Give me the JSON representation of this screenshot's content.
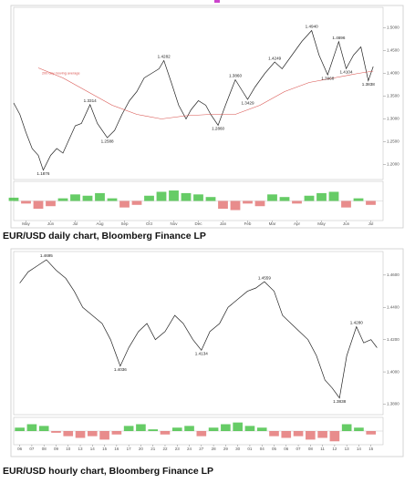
{
  "chart_data": [
    {
      "type": "line",
      "title": "EUR/USD daily chart, Bloomberg Finance LP",
      "xlim": [
        0,
        15
      ],
      "xticks": [
        {
          "value": 0.5,
          "label": "May"
        },
        {
          "value": 1.5,
          "label": "Jun"
        },
        {
          "value": 2.5,
          "label": "Jul"
        },
        {
          "value": 3.5,
          "label": "Aug"
        },
        {
          "value": 4.5,
          "label": "Sep"
        },
        {
          "value": 5.5,
          "label": "Oct"
        },
        {
          "value": 6.5,
          "label": "Nov"
        },
        {
          "value": 7.5,
          "label": "Dec"
        },
        {
          "value": 8.5,
          "label": "Jan"
        },
        {
          "value": 9.5,
          "label": "Feb"
        },
        {
          "value": 10.5,
          "label": "Mar"
        },
        {
          "value": 11.5,
          "label": "Apr"
        },
        {
          "value": 12.5,
          "label": "May"
        },
        {
          "value": 13.5,
          "label": "Jun"
        },
        {
          "value": 14.5,
          "label": "Jul"
        }
      ],
      "ylim": [
        1.167,
        1.545
      ],
      "yticks": [
        {
          "value": 1.2,
          "label": "1.2000"
        },
        {
          "value": 1.25,
          "label": "1.2500"
        },
        {
          "value": 1.3,
          "label": "1.3000"
        },
        {
          "value": 1.35,
          "label": "1.3500"
        },
        {
          "value": 1.4,
          "label": "1.4000"
        },
        {
          "value": 1.45,
          "label": "1.4500"
        },
        {
          "value": 1.5,
          "label": "1.5000"
        }
      ],
      "series": [
        {
          "color": "#222222",
          "x": [
            0,
            0.25,
            0.5,
            0.75,
            1.0,
            1.2,
            1.5,
            1.75,
            2.0,
            2.25,
            2.5,
            2.75,
            3.1,
            3.4,
            3.8,
            4.1,
            4.4,
            4.7,
            5.0,
            5.3,
            5.6,
            5.9,
            6.1,
            6.4,
            6.7,
            7.0,
            7.2,
            7.5,
            7.8,
            8.0,
            8.3,
            8.6,
            9.0,
            9.3,
            9.5,
            9.8,
            10.2,
            10.6,
            10.9,
            11.3,
            11.7,
            12.1,
            12.4,
            12.75,
            13.2,
            13.5,
            13.8,
            14.1,
            14.4,
            14.6
          ],
          "values": [
            1.335,
            1.31,
            1.27,
            1.235,
            1.22,
            1.1876,
            1.22,
            1.235,
            1.225,
            1.255,
            1.285,
            1.29,
            1.3314,
            1.29,
            1.2588,
            1.275,
            1.31,
            1.34,
            1.36,
            1.39,
            1.4,
            1.41,
            1.4282,
            1.38,
            1.33,
            1.3,
            1.32,
            1.34,
            1.33,
            1.31,
            1.286,
            1.33,
            1.386,
            1.36,
            1.3429,
            1.37,
            1.4,
            1.4249,
            1.41,
            1.44,
            1.47,
            1.494,
            1.44,
            1.3968,
            1.4696,
            1.4104,
            1.44,
            1.458,
            1.3838,
            1.415
          ]
        },
        {
          "name": "200 day moving average",
          "color": "#d9534f",
          "x": [
            1,
            2,
            3,
            4,
            5,
            6,
            7,
            8,
            9,
            10,
            11,
            12,
            13,
            14,
            14.6
          ],
          "values": [
            1.412,
            1.39,
            1.36,
            1.33,
            1.31,
            1.3,
            1.307,
            1.31,
            1.31,
            1.33,
            1.36,
            1.38,
            1.39,
            1.4,
            1.405
          ]
        }
      ],
      "annotations": [
        {
          "x": 1.2,
          "value": 1.1876,
          "label": "1.1876"
        },
        {
          "x": 3.1,
          "value": 1.3314,
          "label": "1.3314"
        },
        {
          "x": 3.8,
          "value": 1.2588,
          "label": "1.2588"
        },
        {
          "x": 6.1,
          "value": 1.4282,
          "label": "1.4282"
        },
        {
          "x": 8.3,
          "value": 1.286,
          "label": "1.2860"
        },
        {
          "x": 9.0,
          "value": 1.386,
          "label": "1.3860"
        },
        {
          "x": 9.5,
          "value": 1.3429,
          "label": "1.3429"
        },
        {
          "x": 10.6,
          "value": 1.4249,
          "label": "1.4249"
        },
        {
          "x": 12.1,
          "value": 1.494,
          "label": "1.4940"
        },
        {
          "x": 12.75,
          "value": 1.3968,
          "label": "1.3968"
        },
        {
          "x": 13.2,
          "value": 1.4696,
          "label": "1.4696"
        },
        {
          "x": 13.5,
          "value": 1.4104,
          "label": "1.4104"
        },
        {
          "x": 14.4,
          "value": 1.3838,
          "label": "1.3838"
        }
      ],
      "oscillator": {
        "colors": {
          "positive": "#33bb33",
          "negative": "#e06666"
        },
        "ylim": [
          -0.03,
          0.03
        ],
        "x": [
          0,
          0.5,
          1,
          1.5,
          2,
          2.5,
          3,
          3.5,
          4,
          4.5,
          5,
          5.5,
          6,
          6.5,
          7,
          7.5,
          8,
          8.5,
          9,
          9.5,
          10,
          10.5,
          11,
          11.5,
          12,
          12.5,
          13,
          13.5,
          14,
          14.5
        ],
        "values": [
          0.005,
          -0.004,
          -0.012,
          -0.008,
          0.004,
          0.01,
          0.008,
          0.012,
          0.004,
          -0.01,
          -0.006,
          0.008,
          0.014,
          0.016,
          0.012,
          0.01,
          0.006,
          -0.012,
          -0.014,
          -0.004,
          -0.008,
          0.01,
          0.006,
          -0.004,
          0.008,
          0.012,
          0.014,
          -0.01,
          0.004,
          -0.006
        ]
      }
    },
    {
      "type": "line",
      "title": "EUR/USD hourly chart, Bloomberg Finance LP",
      "xlim": [
        -0.5,
        30
      ],
      "xticks": [
        {
          "value": 0,
          "label": "06"
        },
        {
          "value": 1,
          "label": "07"
        },
        {
          "value": 2,
          "label": "08"
        },
        {
          "value": 3,
          "label": "09"
        },
        {
          "value": 4,
          "label": "10"
        },
        {
          "value": 5,
          "label": "13"
        },
        {
          "value": 6,
          "label": "14"
        },
        {
          "value": 7,
          "label": "15"
        },
        {
          "value": 8,
          "label": "16"
        },
        {
          "value": 9,
          "label": "17"
        },
        {
          "value": 10,
          "label": "20"
        },
        {
          "value": 11,
          "label": "21"
        },
        {
          "value": 12,
          "label": "22"
        },
        {
          "value": 13,
          "label": "23"
        },
        {
          "value": 14,
          "label": "24"
        },
        {
          "value": 15,
          "label": "27"
        },
        {
          "value": 16,
          "label": "28"
        },
        {
          "value": 17,
          "label": "29"
        },
        {
          "value": 18,
          "label": "30"
        },
        {
          "value": 19,
          "label": "01"
        },
        {
          "value": 20,
          "label": "04"
        },
        {
          "value": 21,
          "label": "05"
        },
        {
          "value": 22,
          "label": "06"
        },
        {
          "value": 23,
          "label": "07"
        },
        {
          "value": 24,
          "label": "08"
        },
        {
          "value": 25,
          "label": "11"
        },
        {
          "value": 26,
          "label": "12"
        },
        {
          "value": 27,
          "label": "13"
        },
        {
          "value": 28,
          "label": "14"
        },
        {
          "value": 29,
          "label": "15"
        }
      ],
      "ylim": [
        1.3735,
        1.4746
      ],
      "yticks": [
        {
          "value": 1.38,
          "label": "1.3800"
        },
        {
          "value": 1.4,
          "label": "1.4000"
        },
        {
          "value": 1.42,
          "label": "1.4200"
        },
        {
          "value": 1.44,
          "label": "1.4400"
        },
        {
          "value": 1.46,
          "label": "1.4600"
        }
      ],
      "series": [
        {
          "color": "#222222",
          "x": [
            0,
            0.7,
            1.5,
            2.2,
            3,
            3.8,
            4.5,
            5.2,
            6,
            6.8,
            7.5,
            8.3,
            9,
            9.8,
            10.5,
            11.2,
            12,
            12.8,
            13.5,
            14.3,
            15,
            15.7,
            16.5,
            17.2,
            18,
            18.8,
            19.5,
            20.2,
            21,
            21.7,
            22.4,
            23.1,
            23.8,
            24.5,
            25.2,
            25.8,
            26.4,
            27,
            27.8,
            28.4,
            29,
            29.5
          ],
          "values": [
            1.455,
            1.462,
            1.466,
            1.4695,
            1.463,
            1.458,
            1.45,
            1.44,
            1.435,
            1.43,
            1.42,
            1.4036,
            1.415,
            1.425,
            1.43,
            1.42,
            1.425,
            1.435,
            1.43,
            1.42,
            1.4134,
            1.425,
            1.43,
            1.44,
            1.445,
            1.45,
            1.452,
            1.4559,
            1.45,
            1.435,
            1.43,
            1.425,
            1.42,
            1.41,
            1.395,
            1.39,
            1.3838,
            1.41,
            1.428,
            1.418,
            1.42,
            1.415
          ]
        }
      ],
      "annotations": [
        {
          "x": 2.2,
          "value": 1.4695,
          "label": "1.4695"
        },
        {
          "x": 8.3,
          "value": 1.4036,
          "label": "1.4036"
        },
        {
          "x": 15,
          "value": 1.4134,
          "label": "1.4134"
        },
        {
          "x": 20.2,
          "value": 1.4559,
          "label": "1.4559"
        },
        {
          "x": 26.4,
          "value": 1.3838,
          "label": "1.3838"
        },
        {
          "x": 27.8,
          "value": 1.428,
          "label": "1.4280"
        }
      ],
      "oscillator": {
        "colors": {
          "positive": "#33bb33",
          "negative": "#e06666"
        },
        "ylim": [
          -0.008,
          0.008
        ],
        "x": [
          0,
          1,
          2,
          3,
          4,
          5,
          6,
          7,
          8,
          9,
          10,
          11,
          12,
          13,
          14,
          15,
          16,
          17,
          18,
          19,
          20,
          21,
          22,
          23,
          24,
          25,
          26,
          27,
          28,
          29
        ],
        "values": [
          0.002,
          0.004,
          0.003,
          -0.001,
          -0.003,
          -0.004,
          -0.003,
          -0.005,
          -0.002,
          0.003,
          0.004,
          0.001,
          -0.002,
          0.002,
          0.003,
          -0.003,
          0.002,
          0.004,
          0.005,
          0.003,
          0.002,
          -0.003,
          -0.004,
          -0.003,
          -0.005,
          -0.004,
          -0.006,
          0.004,
          0.002,
          -0.002
        ]
      }
    }
  ]
}
